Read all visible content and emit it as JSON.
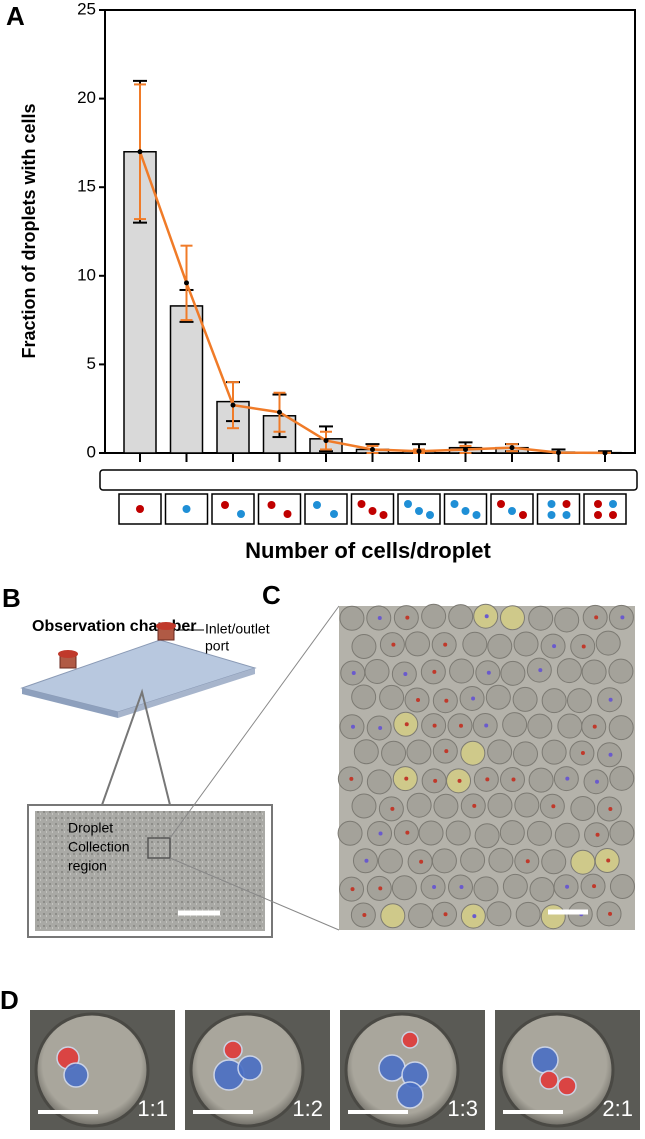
{
  "chart_data": {
    "type": "bar",
    "panel_label": "A",
    "ylabel": "Fraction of droplets with cells",
    "xlabel": "Number of cells/droplet",
    "categories": [
      null,
      null,
      null,
      null,
      null,
      null,
      null,
      null,
      null,
      null,
      null
    ],
    "series": [
      {
        "type": "bar",
        "color": "#d9d9d9",
        "values": [
          17,
          8.3,
          2.9,
          2.1,
          0.8,
          0.2,
          0.1,
          0.3,
          0.3,
          0.05,
          0.02
        ],
        "errors": [
          4,
          0.9,
          1.1,
          1.2,
          0.7,
          0.3,
          0.4,
          0.3,
          0.2,
          0.15,
          0.08
        ]
      },
      {
        "type": "line",
        "color": "#f07b28",
        "values": [
          17,
          9.6,
          2.7,
          2.3,
          0.7,
          0.2,
          0.1,
          0.2,
          0.3,
          0.02,
          0.01
        ],
        "errors": [
          3.8,
          2.1,
          1.3,
          1.1,
          0.5,
          0.2,
          0.1,
          0.2,
          0.2,
          0,
          0
        ]
      }
    ],
    "ylim": [
      0,
      25
    ],
    "yticks": [
      0,
      5,
      10,
      15,
      20,
      25
    ]
  },
  "panels": {
    "B": {
      "label": "B",
      "title": "Observation chamber",
      "port": [
        "Inlet/outlet",
        "port"
      ],
      "region": [
        "Droplet",
        "Collection",
        "region"
      ]
    },
    "C": {
      "label": "C"
    },
    "D": {
      "label": "D",
      "ratios": [
        "1:1",
        "1:2",
        "1:3",
        "2:1"
      ]
    }
  }
}
